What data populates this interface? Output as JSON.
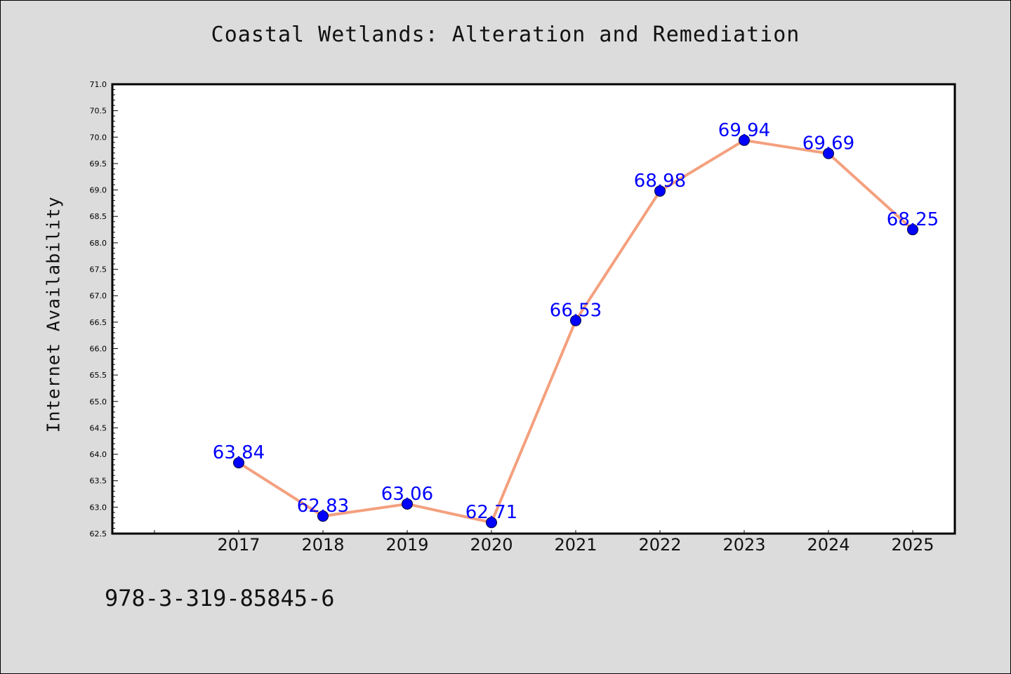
{
  "chart_data": {
    "type": "line",
    "title": "Coastal Wetlands: Alteration and Remediation",
    "xlabel": "",
    "ylabel": "Internet Availability",
    "categories": [
      "2017",
      "2018",
      "2019",
      "2020",
      "2021",
      "2022",
      "2023",
      "2024",
      "2025"
    ],
    "values": [
      63.84,
      62.83,
      63.06,
      62.71,
      66.53,
      68.98,
      69.94,
      69.69,
      68.25
    ],
    "data_labels": [
      "63.84",
      "62.83",
      "63.06",
      "62.71",
      "66.53",
      "68.98",
      "69.94",
      "69.69",
      "68.25"
    ],
    "ylim": [
      62.5,
      71.0
    ],
    "y_ticks": [
      "62.5",
      "63.0",
      "63.5",
      "64.0",
      "64.5",
      "65.0",
      "65.5",
      "66.0",
      "66.5",
      "67.0",
      "67.5",
      "68.0",
      "68.5",
      "69.0",
      "69.5",
      "70.0",
      "70.5",
      "71.0"
    ],
    "grid": false,
    "line_color": "#f4a07e",
    "marker_color": "#0000ff",
    "label_color": "#0000ff",
    "background": "#dcdcdc",
    "plot_background": "#ffffff"
  },
  "footnote": "978-3-319-85845-6"
}
